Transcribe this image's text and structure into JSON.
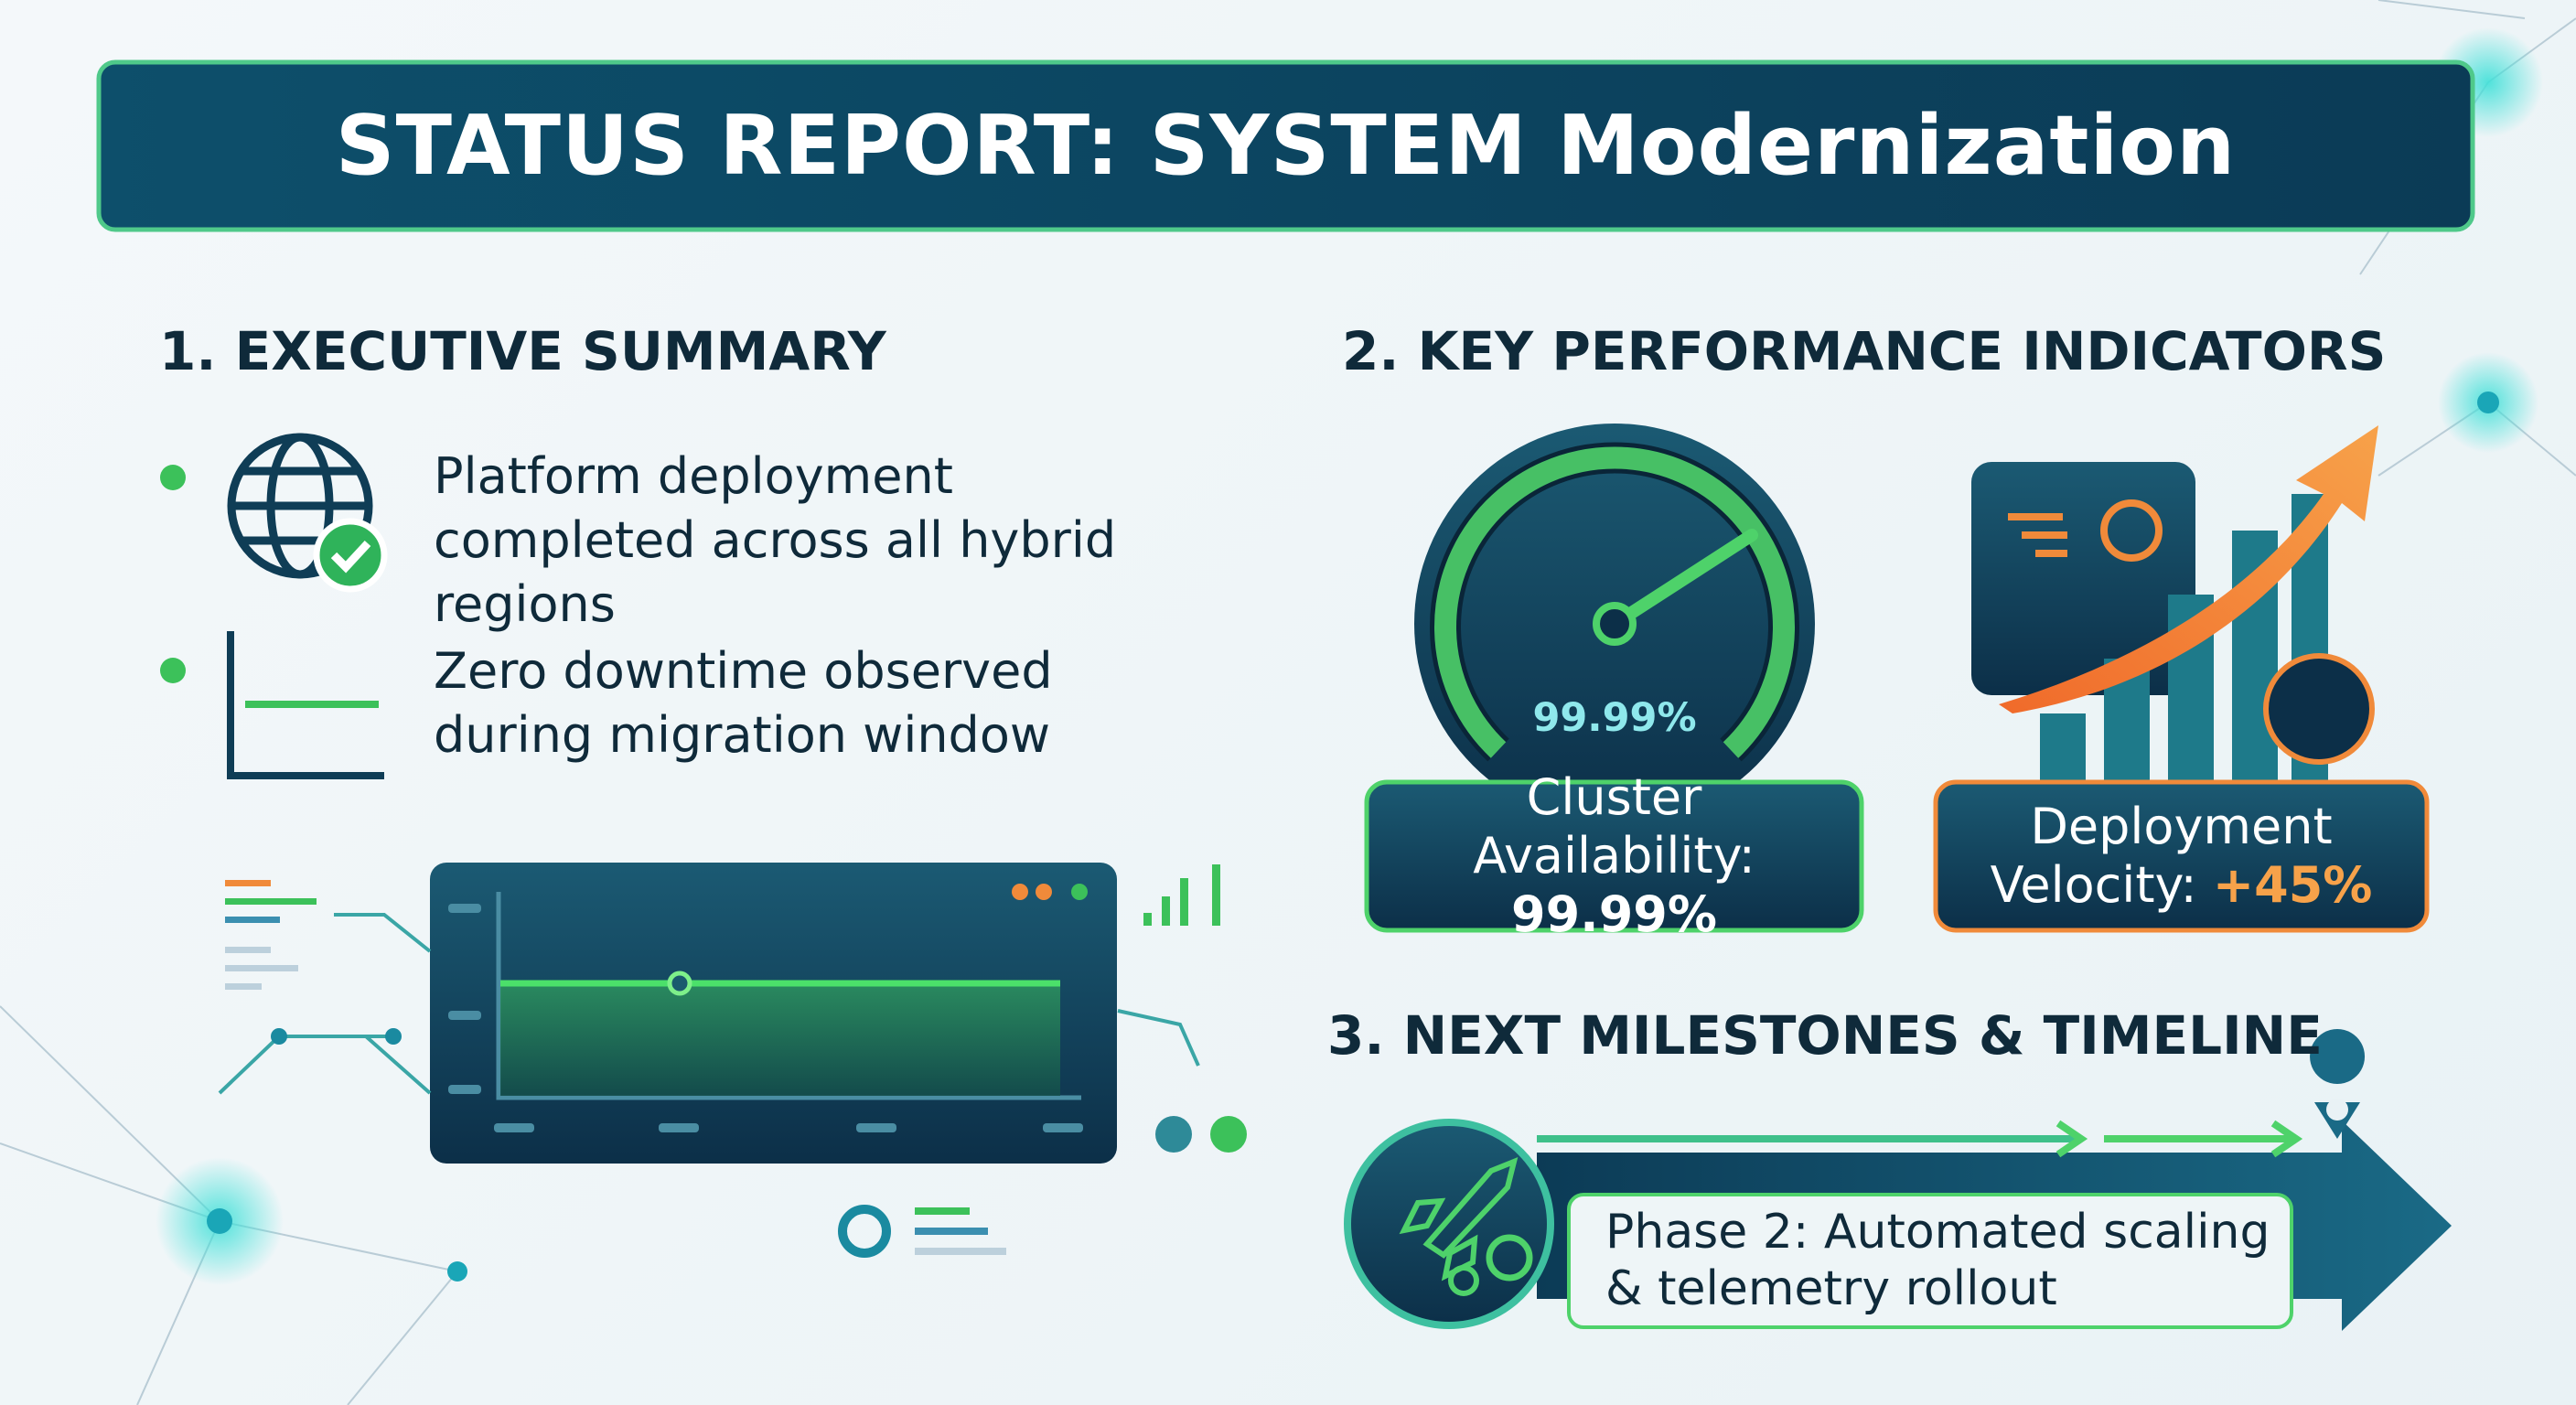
{
  "header": {
    "title": "STATUS REPORT: SYSTEM Modernization"
  },
  "summary": {
    "heading": "1. EXECUTIVE SUMMARY",
    "items": [
      "Platform deployment completed across all hybrid regions",
      "Zero downtime observed during migration window"
    ]
  },
  "kpis": {
    "heading": "2. KEY PERFORMANCE INDICATORS",
    "gauge_value": "99.99%",
    "cards": [
      {
        "label": "Cluster Availability:",
        "value": "99.99%"
      },
      {
        "label": "Deployment Velocity:",
        "value": "+45%"
      }
    ]
  },
  "milestones": {
    "heading": "3. NEXT MILESTONES & TIMELINE",
    "phase": "Phase 2: Automated scaling & telemetry rollout"
  }
}
